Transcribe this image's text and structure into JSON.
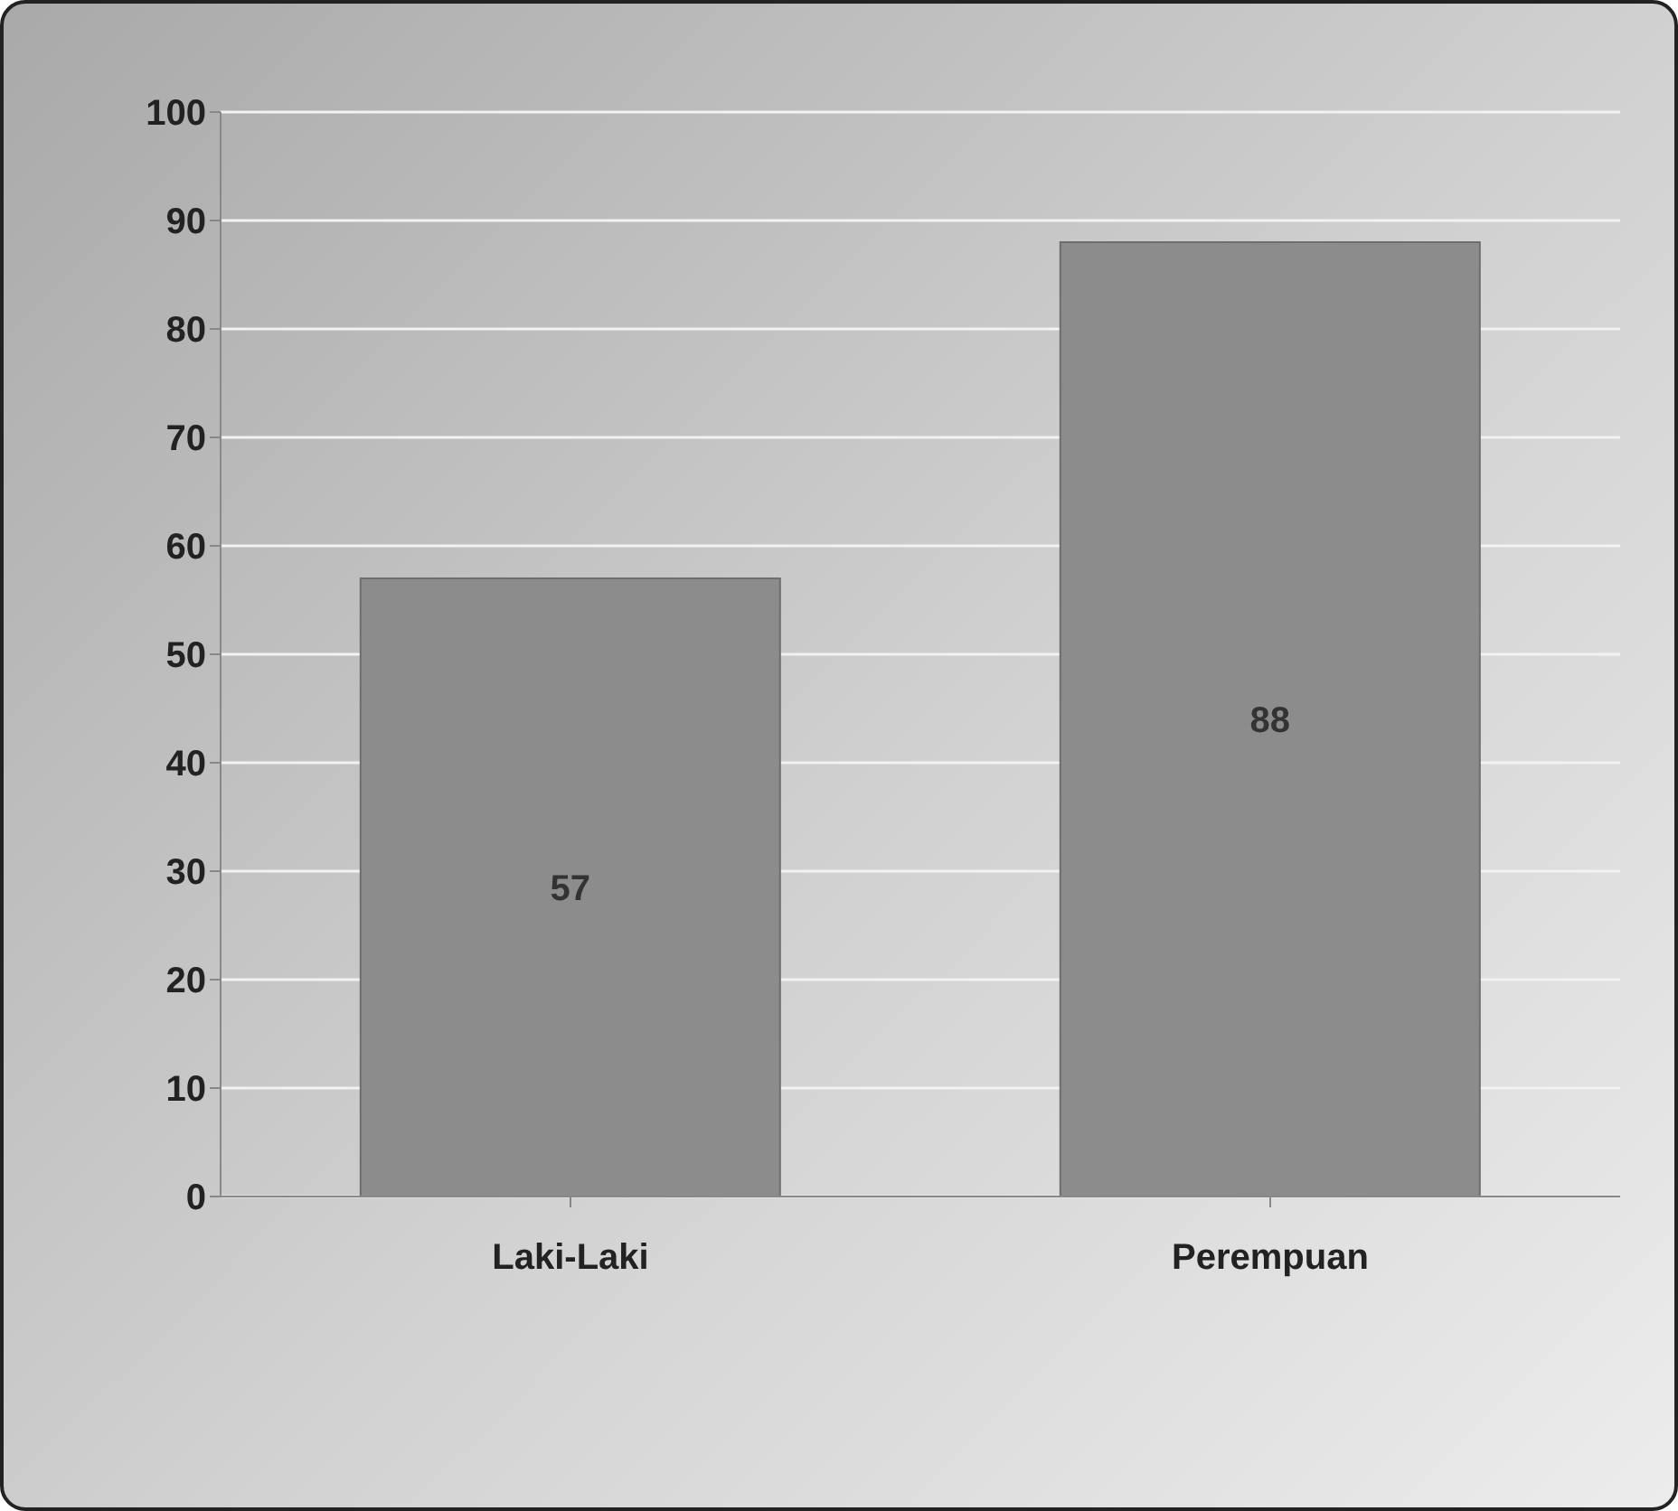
{
  "chart_data": {
    "type": "bar",
    "categories": [
      "Laki-Laki",
      "Perempuan"
    ],
    "values": [
      57,
      88
    ],
    "color": "#8c8c8c",
    "ylim": [
      0,
      100
    ],
    "yticks": [
      0,
      10,
      20,
      30,
      40,
      50,
      60,
      70,
      80,
      90,
      100
    ],
    "grid": "y",
    "data_labels": true
  }
}
